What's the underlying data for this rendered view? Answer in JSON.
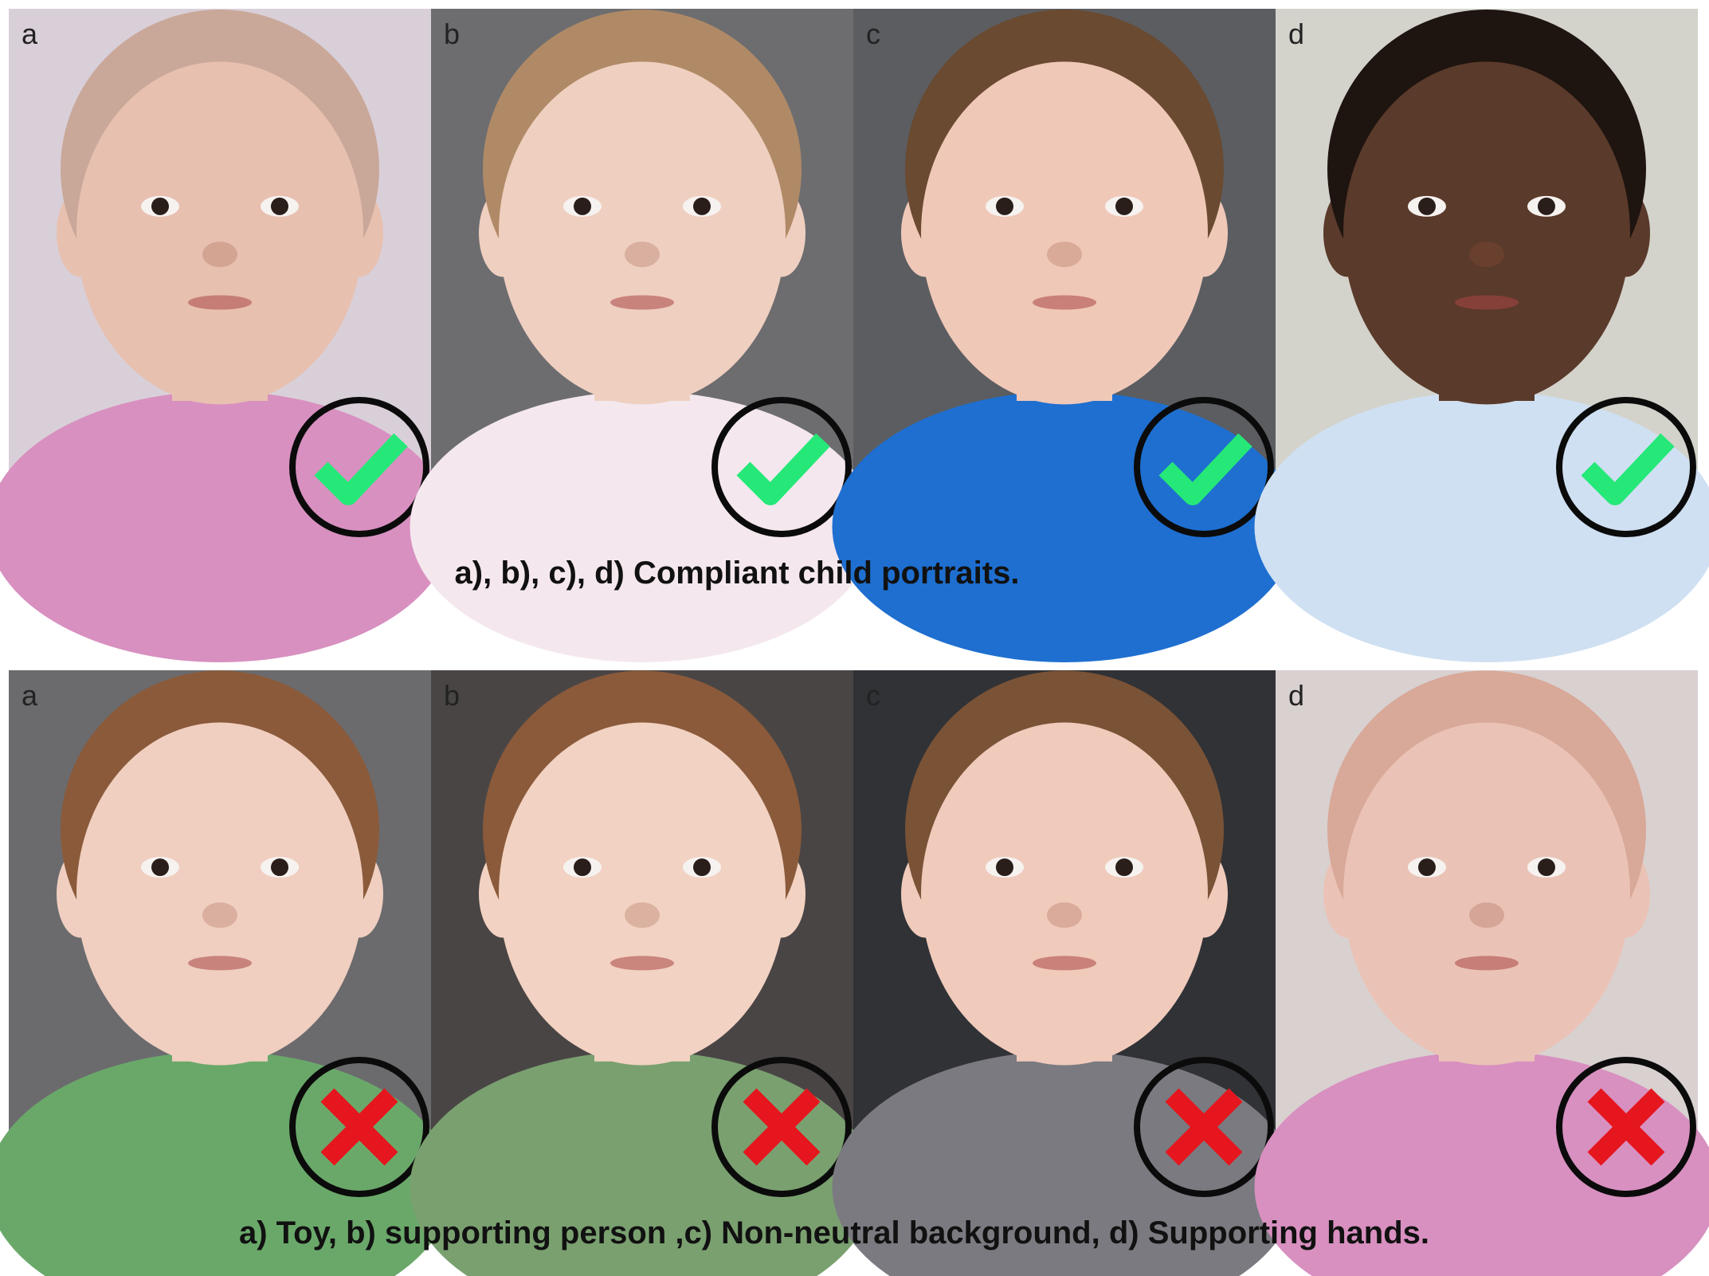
{
  "panels": [
    {
      "photos": [
        {
          "label": "a"
        },
        {
          "label": "b"
        },
        {
          "label": "c"
        },
        {
          "label": "d"
        }
      ],
      "caption": "a), b), c), d) Compliant child portraits."
    },
    {
      "photos": [
        {
          "label": "a"
        },
        {
          "label": "b"
        },
        {
          "label": "c"
        },
        {
          "label": "d"
        }
      ],
      "caption": "a) Toy, b) supporting person ,c) Non-neutral background, d) Supporting hands."
    }
  ]
}
